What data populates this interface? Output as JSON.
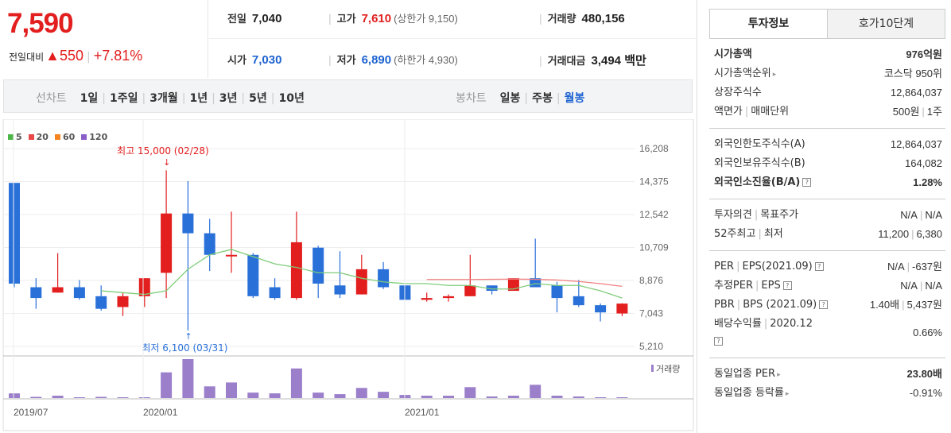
{
  "price": {
    "current": "7,590",
    "change_label": "전일대비",
    "change_arrow": "▲",
    "change_amount": "550",
    "change_pct": "+7.81%"
  },
  "quote": {
    "prev_close_label": "전일",
    "prev_close": "7,040",
    "high_label": "고가",
    "high": "7,610",
    "upper_limit": "(상한가 9,150)",
    "volume_label": "거래량",
    "volume": "480,156",
    "open_label": "시가",
    "open": "7,030",
    "low_label": "저가",
    "low": "6,890",
    "lower_limit": "(하한가 4,930)",
    "amount_label": "거래대금",
    "amount": "3,494 백만"
  },
  "toolbar": {
    "line_chart_label": "선차트",
    "line_periods": [
      "1일",
      "1주일",
      "3개월",
      "1년",
      "3년",
      "5년",
      "10년"
    ],
    "candle_chart_label": "봉차트",
    "candle_periods": [
      "일봉",
      "주봉",
      "월봉"
    ],
    "active_candle": "월봉"
  },
  "legend": [
    {
      "label": "5",
      "color": "#4cb748"
    },
    {
      "label": "20",
      "color": "#e94848"
    },
    {
      "label": "60",
      "color": "#f5841f"
    },
    {
      "label": "120",
      "color": "#8b5fc7"
    }
  ],
  "annotations": {
    "max_label": "최고 15,000 (02/28)",
    "min_label": "최저 6,100 (03/31)",
    "volume_label": "거래량"
  },
  "chart_data": {
    "type": "candlestick",
    "y_ticks": [
      "16,208",
      "14,375",
      "12,542",
      "10,709",
      "8,876",
      "7,043",
      "5,210"
    ],
    "ylim": [
      5210,
      16208
    ],
    "x_ticks": [
      "2019/07",
      "2020/01",
      "2021/01"
    ],
    "colors": {
      "up": "#e21e1e",
      "down": "#2a70d9",
      "ma5": "#7fcd7a",
      "ma20": "#f08080",
      "volume": "#9b7fcb"
    },
    "candles": [
      {
        "o": 14300,
        "h": 14300,
        "c": 8700,
        "l": 8500,
        "v": 6
      },
      {
        "o": 8500,
        "h": 9000,
        "c": 7900,
        "l": 7300,
        "v": 0
      },
      {
        "o": 8200,
        "h": 10400,
        "c": 8500,
        "l": 8200,
        "v": 3
      },
      {
        "o": 8500,
        "h": 8900,
        "c": 7900,
        "l": 7800,
        "v": 1
      },
      {
        "o": 8000,
        "h": 8600,
        "c": 7300,
        "l": 7200,
        "v": 0
      },
      {
        "o": 7400,
        "h": 8200,
        "c": 8000,
        "l": 6900,
        "v": 1
      },
      {
        "o": 8000,
        "h": 9000,
        "c": 9000,
        "l": 7400,
        "v": 1
      },
      {
        "o": 9300,
        "h": 15000,
        "c": 12600,
        "l": 7900,
        "v": 33
      },
      {
        "o": 12600,
        "h": 14400,
        "c": 11500,
        "l": 6100,
        "v": 50
      },
      {
        "o": 11500,
        "h": 12300,
        "c": 10300,
        "l": 9400,
        "v": 15
      },
      {
        "o": 10300,
        "h": 12700,
        "c": 10300,
        "l": 9300,
        "v": 20
      },
      {
        "o": 10300,
        "h": 10400,
        "c": 8000,
        "l": 7900,
        "v": 7
      },
      {
        "o": 8500,
        "h": 9000,
        "c": 7900,
        "l": 7800,
        "v": 6
      },
      {
        "o": 7900,
        "h": 12700,
        "c": 11000,
        "l": 7800,
        "v": 38
      },
      {
        "o": 10700,
        "h": 10800,
        "c": 8700,
        "l": 7900,
        "v": 7
      },
      {
        "o": 8600,
        "h": 10500,
        "c": 8100,
        "l": 7900,
        "v": 5
      },
      {
        "o": 8100,
        "h": 10300,
        "c": 9500,
        "l": 8100,
        "v": 13
      },
      {
        "o": 9500,
        "h": 9900,
        "c": 8500,
        "l": 8400,
        "v": 8
      },
      {
        "o": 8600,
        "h": 8600,
        "c": 7800,
        "l": 7800,
        "v": 4
      },
      {
        "o": 7800,
        "h": 8200,
        "c": 7900,
        "l": 7700,
        "v": 3
      },
      {
        "o": 7900,
        "h": 8100,
        "c": 8000,
        "l": 7700,
        "v": 3
      },
      {
        "o": 8000,
        "h": 10300,
        "c": 8600,
        "l": 8000,
        "v": 14
      },
      {
        "o": 8600,
        "h": 8600,
        "c": 8300,
        "l": 8100,
        "v": 2
      },
      {
        "o": 8300,
        "h": 9000,
        "c": 9000,
        "l": 8300,
        "v": 3
      },
      {
        "o": 9000,
        "h": 11200,
        "c": 8500,
        "l": 8500,
        "v": 17
      },
      {
        "o": 8600,
        "h": 8800,
        "c": 7900,
        "l": 7100,
        "v": 3
      },
      {
        "o": 8000,
        "h": 8900,
        "c": 7500,
        "l": 7400,
        "v": 2
      },
      {
        "o": 7500,
        "h": 7600,
        "c": 7100,
        "l": 6600,
        "v": 1
      },
      {
        "o": 7040,
        "h": 7610,
        "c": 7590,
        "l": 6890,
        "v": 1
      }
    ],
    "ma5": [
      null,
      null,
      null,
      null,
      8300,
      8200,
      8100,
      8300,
      9500,
      10300,
      10600,
      10200,
      9800,
      9600,
      9300,
      9300,
      9000,
      8800,
      8700,
      8700,
      8600,
      8600,
      8400,
      8400,
      8700,
      8600,
      8600,
      8300,
      7900
    ],
    "ma20": [
      null,
      null,
      null,
      null,
      null,
      null,
      null,
      null,
      null,
      null,
      null,
      null,
      null,
      null,
      null,
      null,
      null,
      null,
      null,
      8930,
      8930,
      8930,
      8940,
      8950,
      8940,
      8900,
      8820,
      8700,
      8550
    ]
  },
  "side": {
    "tabs": [
      "투자정보",
      "호가10단계"
    ],
    "market_cap_label": "시가총액",
    "market_cap": "976억원",
    "cap_rank_label": "시가총액순위",
    "cap_rank": "코스닥 950위",
    "shares_label": "상장주식수",
    "shares": "12,864,037",
    "face_label": "액면가",
    "unit_label": "매매단위",
    "face": "500원",
    "unit": "1주",
    "foreign_limit_label": "외국인한도주식수(A)",
    "foreign_limit": "12,864,037",
    "foreign_hold_label": "외국인보유주식수(B)",
    "foreign_hold": "164,082",
    "foreign_ratio_label": "외국인소진율(B/A)",
    "foreign_ratio": "1.28%",
    "opinion_label": "투자의견",
    "target_label": "목표주가",
    "opinion": "N/A",
    "target": "N/A",
    "w52_high_label": "52주최고",
    "w52_low_label": "최저",
    "w52_high": "11,200",
    "w52_low": "6,380",
    "per_label": "PER",
    "eps_label": "EPS(2021.09)",
    "per": "N/A",
    "eps": "-637원",
    "est_per_label": "추정PER",
    "est_eps_label": "EPS",
    "est_per": "N/A",
    "est_eps": "N/A",
    "pbr_label": "PBR",
    "bps_label": "BPS (2021.09)",
    "pbr": "1.40배",
    "bps": "5,437원",
    "div_label": "배당수익률",
    "div_year": "2020.12",
    "div": "0.66%",
    "industry_per_label": "동일업종 PER",
    "industry_per": "23.80배",
    "industry_chg_label": "동일업종 등락률",
    "industry_chg": "-0.91%"
  }
}
